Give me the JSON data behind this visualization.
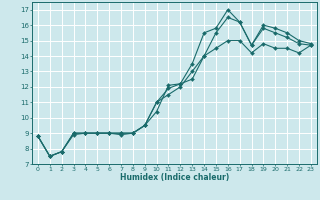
{
  "xlabel": "Humidex (Indice chaleur)",
  "ylabel": "",
  "bg_color": "#cde8ec",
  "line_color": "#1a6b6b",
  "grid_color": "#ffffff",
  "xlim": [
    -0.5,
    23.5
  ],
  "ylim": [
    7,
    17.5
  ],
  "xticks": [
    0,
    1,
    2,
    3,
    4,
    5,
    6,
    7,
    8,
    9,
    10,
    11,
    12,
    13,
    14,
    15,
    16,
    17,
    18,
    19,
    20,
    21,
    22,
    23
  ],
  "yticks": [
    7,
    8,
    9,
    10,
    11,
    12,
    13,
    14,
    15,
    16,
    17
  ],
  "series": [
    {
      "x": [
        0,
        1,
        2,
        3,
        4,
        5,
        6,
        7,
        8,
        9,
        10,
        11,
        12,
        13,
        14,
        15,
        16,
        17,
        18,
        19,
        20,
        21,
        22,
        23
      ],
      "y": [
        8.8,
        7.5,
        7.8,
        9.0,
        9.0,
        9.0,
        9.0,
        9.0,
        9.0,
        9.5,
        10.4,
        12.1,
        12.2,
        13.5,
        15.5,
        15.8,
        17.0,
        16.2,
        14.7,
        16.0,
        15.8,
        15.5,
        15.0,
        14.8
      ]
    },
    {
      "x": [
        0,
        1,
        2,
        3,
        4,
        5,
        6,
        7,
        8,
        9,
        10,
        11,
        12,
        13,
        14,
        15,
        16,
        17,
        18,
        19,
        20,
        21,
        22,
        23
      ],
      "y": [
        8.8,
        7.5,
        7.8,
        8.9,
        9.0,
        9.0,
        9.0,
        8.9,
        9.0,
        9.5,
        11.0,
        11.9,
        12.2,
        12.5,
        14.0,
        15.5,
        16.5,
        16.2,
        14.7,
        15.8,
        15.5,
        15.2,
        14.8,
        14.7
      ]
    },
    {
      "x": [
        0,
        1,
        2,
        3,
        4,
        5,
        6,
        7,
        8,
        9,
        10,
        11,
        12,
        13,
        14,
        15,
        16,
        17,
        18,
        19,
        20,
        21,
        22,
        23
      ],
      "y": [
        8.8,
        7.5,
        7.8,
        9.0,
        9.0,
        9.0,
        9.0,
        9.0,
        9.0,
        9.5,
        11.0,
        11.5,
        12.0,
        13.0,
        14.0,
        14.5,
        15.0,
        15.0,
        14.2,
        14.8,
        14.5,
        14.5,
        14.2,
        14.7
      ]
    }
  ]
}
